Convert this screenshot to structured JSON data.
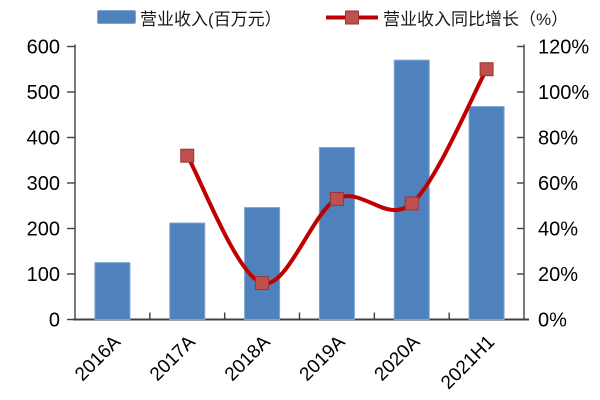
{
  "legend": {
    "items": [
      {
        "label": "营业收入(百万元）",
        "type": "bar",
        "swatch_icon": "bar-swatch-icon",
        "color": "#4F81BD",
        "border": "#7EA4D4"
      },
      {
        "label": "营业收入同比增长（%）",
        "type": "line",
        "swatch_icon": "line-swatch-icon",
        "line_color": "#C00000",
        "marker_color": "#C0504D",
        "marker_border": "#953735"
      }
    ]
  },
  "chart_data": {
    "type": "bar+line combo",
    "background": "#FFFFFF",
    "grid": "off",
    "legend_position": "top",
    "axis_color": "#404040",
    "categories": [
      "2016A",
      "2017A",
      "2018A",
      "2019A",
      "2020A",
      "2021H1"
    ],
    "series": [
      {
        "name": "营业收入(百万元）",
        "type": "bar",
        "axis": "left",
        "color": "#4F81BD",
        "border_color": "#7EA4D4",
        "values": [
          125,
          212,
          246,
          378,
          570,
          468
        ]
      },
      {
        "name": "营业收入同比增长（%）",
        "type": "line",
        "axis": "right",
        "smooth": true,
        "color": "#C00000",
        "marker": "square",
        "marker_color": "#C0504D",
        "marker_border": "#953735",
        "unit": "%",
        "values": [
          null,
          72,
          16,
          53,
          51,
          110
        ]
      }
    ],
    "left_axis": {
      "min": 0,
      "max": 600,
      "step": 100,
      "tick_labels": [
        "600",
        "500",
        "400",
        "300",
        "200",
        "100",
        "0"
      ]
    },
    "right_axis": {
      "min": 0,
      "max": 120,
      "step": 20,
      "tick_labels": [
        "120%",
        "100%",
        "80%",
        "60%",
        "40%",
        "20%",
        "0%"
      ]
    }
  }
}
